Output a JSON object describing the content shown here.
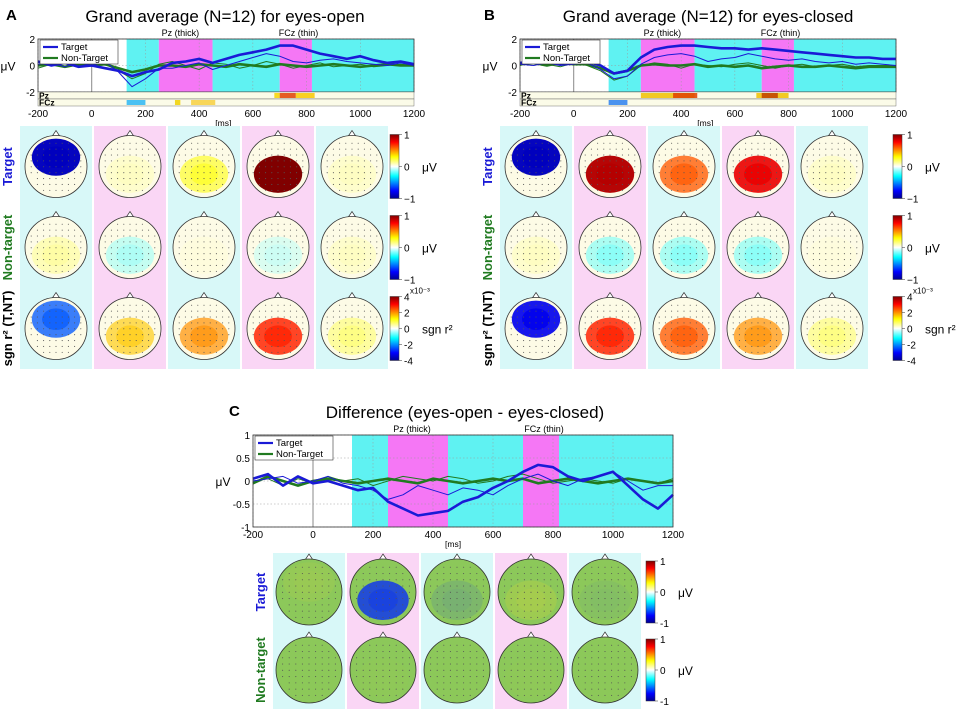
{
  "chart_data": [
    {
      "type": "line",
      "panel_letter": "A",
      "title": "Grand average (N=12) for eyes-open",
      "xlabel": "[ms]",
      "ylabel": "μV",
      "xlim": [
        -200,
        1200
      ],
      "ylim": [
        -2,
        2
      ],
      "xticks": [
        -200,
        0,
        200,
        400,
        600,
        800,
        1000,
        1200
      ],
      "yticks": [
        -2,
        0,
        2
      ],
      "legend": [
        "Target",
        "Non-Target"
      ],
      "channel_labels": [
        "Pz (thick)",
        "FCz (thin)"
      ],
      "r2_strip_labels": [
        "Pz",
        "FCz"
      ],
      "intervals_ms": [
        [
          130,
          250
        ],
        [
          250,
          450
        ],
        [
          450,
          700
        ],
        [
          700,
          820
        ],
        [
          820,
          1200
        ]
      ],
      "interval_colors": [
        "cyan",
        "magenta",
        "cyan",
        "magenta",
        "cyan"
      ],
      "series": [
        {
          "name": "Target Pz (thick)",
          "x": [
            -200,
            -150,
            -100,
            -50,
            0,
            50,
            100,
            150,
            200,
            250,
            300,
            350,
            400,
            450,
            500,
            550,
            600,
            650,
            700,
            750,
            800,
            850,
            900,
            950,
            1000,
            1050,
            1100,
            1150,
            1200
          ],
          "values": [
            0.3,
            0.0,
            0.2,
            -0.1,
            0.0,
            -0.2,
            -0.4,
            -0.8,
            -0.5,
            -0.3,
            0.2,
            0.3,
            0.5,
            0.2,
            0.5,
            0.8,
            1.0,
            1.2,
            1.5,
            1.5,
            1.2,
            0.9,
            0.7,
            0.5,
            0.7,
            0.4,
            0.2,
            0.3,
            0.1
          ]
        },
        {
          "name": "Target FCz (thin)",
          "x": [
            -200,
            -150,
            -100,
            -50,
            0,
            50,
            100,
            150,
            200,
            250,
            300,
            350,
            400,
            450,
            500,
            550,
            600,
            650,
            700,
            750,
            800,
            850,
            900,
            950,
            1000,
            1050,
            1100,
            1150,
            1200
          ],
          "values": [
            0.1,
            0.2,
            -0.1,
            0.2,
            0.0,
            0.3,
            -0.5,
            -1.6,
            -1.0,
            -0.2,
            -0.2,
            0.0,
            0.2,
            -0.3,
            0.0,
            0.3,
            0.6,
            0.9,
            0.7,
            0.3,
            0.2,
            0.4,
            0.5,
            0.3,
            0.2,
            0.1,
            0.0,
            0.2,
            0.0
          ]
        },
        {
          "name": "Non-Target Pz (thick)",
          "x": [
            -200,
            -150,
            -100,
            -50,
            0,
            50,
            100,
            150,
            200,
            250,
            300,
            350,
            400,
            450,
            500,
            550,
            600,
            650,
            700,
            750,
            800,
            850,
            900,
            950,
            1000,
            1050,
            1100,
            1150,
            1200
          ],
          "values": [
            0.0,
            0.1,
            -0.1,
            0.1,
            0.0,
            0.1,
            -0.2,
            -0.5,
            -0.3,
            0.0,
            0.0,
            -0.1,
            0.1,
            0.0,
            -0.1,
            0.1,
            0.0,
            -0.1,
            0.1,
            0.0,
            -0.1,
            0.0,
            0.1,
            0.0,
            -0.1,
            0.0,
            0.1,
            0.0,
            0.0
          ]
        },
        {
          "name": "Non-Target FCz (thin)",
          "x": [
            -200,
            -150,
            -100,
            -50,
            0,
            50,
            100,
            150,
            200,
            250,
            300,
            350,
            400,
            450,
            500,
            550,
            600,
            650,
            700,
            750,
            800,
            850,
            900,
            950,
            1000,
            1050,
            1100,
            1150,
            1200
          ],
          "values": [
            -0.2,
            0.1,
            0.2,
            -0.1,
            0.0,
            0.1,
            -0.4,
            -1.0,
            -0.6,
            0.1,
            0.3,
            0.0,
            -0.3,
            0.2,
            0.1,
            -0.2,
            0.0,
            0.3,
            0.1,
            -0.2,
            0.0,
            0.2,
            -0.1,
            0.0,
            0.1,
            -0.1,
            0.0,
            0.1,
            0.0
          ]
        }
      ],
      "topo_rows": [
        "Target",
        "Non-target",
        "sgn r² (T,NT)"
      ],
      "colorbars": [
        {
          "ticks": [
            "1",
            "0",
            "−1"
          ],
          "unit": "μV"
        },
        {
          "ticks": [
            "1",
            "0",
            "−1"
          ],
          "unit": "μV"
        },
        {
          "ticks": [
            "4",
            "2",
            "0",
            "-2",
            "-4"
          ],
          "unit": "sgn r²",
          "exponent": "x10⁻³"
        }
      ],
      "topo_values": [
        [
          -0.9,
          0.1,
          0.3,
          1.0,
          0.1
        ],
        [
          0.15,
          -0.15,
          0.05,
          -0.1,
          0.1
        ],
        [
          -0.6,
          0.4,
          0.5,
          0.7,
          0.2
        ]
      ]
    },
    {
      "type": "line",
      "panel_letter": "B",
      "title": "Grand average (N=12) for eyes-closed",
      "xlabel": "[ms]",
      "ylabel": "μV",
      "xlim": [
        -200,
        1200
      ],
      "ylim": [
        -2,
        2
      ],
      "xticks": [
        -200,
        0,
        200,
        400,
        600,
        800,
        1000,
        1200
      ],
      "yticks": [
        -2,
        0,
        2
      ],
      "legend": [
        "Target",
        "Non-Target"
      ],
      "channel_labels": [
        "Pz (thick)",
        "FCz (thin)"
      ],
      "r2_strip_labels": [
        "Pz",
        "FCz"
      ],
      "intervals_ms": [
        [
          130,
          250
        ],
        [
          250,
          450
        ],
        [
          450,
          700
        ],
        [
          700,
          820
        ],
        [
          820,
          1200
        ]
      ],
      "interval_colors": [
        "cyan",
        "magenta",
        "cyan",
        "magenta",
        "cyan"
      ],
      "series": [
        {
          "name": "Target Pz (thick)",
          "x": [
            -200,
            -150,
            -100,
            -50,
            0,
            50,
            100,
            150,
            200,
            250,
            300,
            350,
            400,
            450,
            500,
            550,
            600,
            650,
            700,
            750,
            800,
            850,
            900,
            950,
            1000,
            1050,
            1100,
            1150,
            1200
          ],
          "values": [
            0.2,
            0.3,
            0.4,
            0.1,
            0.2,
            0.3,
            0.0,
            -0.6,
            -0.4,
            0.6,
            1.2,
            1.4,
            1.5,
            1.5,
            1.4,
            1.3,
            1.3,
            1.2,
            1.3,
            1.2,
            1.1,
            1.0,
            0.9,
            0.8,
            0.7,
            0.6,
            0.6,
            0.5,
            0.5
          ]
        },
        {
          "name": "Target FCz (thin)",
          "x": [
            -200,
            -150,
            -100,
            -50,
            0,
            50,
            100,
            150,
            200,
            250,
            300,
            350,
            400,
            450,
            500,
            550,
            600,
            650,
            700,
            750,
            800,
            850,
            900,
            950,
            1000,
            1050,
            1100,
            1150,
            1200
          ],
          "values": [
            0.1,
            0.0,
            0.2,
            0.0,
            0.1,
            0.2,
            -0.3,
            -1.0,
            -0.8,
            0.1,
            0.6,
            0.8,
            0.9,
            0.7,
            0.3,
            0.5,
            0.6,
            0.9,
            0.7,
            0.5,
            0.4,
            0.5,
            0.3,
            0.2,
            0.3,
            0.1,
            0.2,
            0.1,
            0.0
          ]
        },
        {
          "name": "Non-Target Pz (thick)",
          "x": [
            -200,
            -150,
            -100,
            -50,
            0,
            50,
            100,
            150,
            200,
            250,
            300,
            350,
            400,
            450,
            500,
            550,
            600,
            650,
            700,
            750,
            800,
            850,
            900,
            950,
            1000,
            1050,
            1100,
            1150,
            1200
          ],
          "values": [
            0.1,
            0.2,
            0.0,
            0.2,
            0.1,
            0.1,
            -0.2,
            -0.6,
            -0.4,
            0.0,
            0.1,
            0.0,
            0.0,
            0.1,
            -0.1,
            0.0,
            -0.1,
            0.0,
            -0.2,
            -0.1,
            0.0,
            -0.1,
            -0.1,
            0.0,
            -0.1,
            -0.2,
            -0.1,
            -0.1,
            -0.1
          ]
        },
        {
          "name": "Non-Target FCz (thin)",
          "x": [
            -200,
            -150,
            -100,
            -50,
            0,
            50,
            100,
            150,
            200,
            250,
            300,
            350,
            400,
            450,
            500,
            550,
            600,
            650,
            700,
            750,
            800,
            850,
            900,
            950,
            1000,
            1050,
            1100,
            1150,
            1200
          ],
          "values": [
            0.0,
            0.3,
            0.1,
            -0.1,
            0.2,
            0.0,
            -0.4,
            -1.1,
            -0.8,
            0.0,
            0.2,
            0.1,
            -0.2,
            0.1,
            0.0,
            -0.1,
            0.1,
            0.2,
            0.0,
            -0.2,
            0.0,
            0.1,
            -0.1,
            0.0,
            0.1,
            -0.1,
            0.0,
            0.0,
            0.0
          ]
        }
      ],
      "topo_rows": [
        "Target",
        "Non-target",
        "sgn r² (T,NT)"
      ],
      "colorbars": [
        {
          "ticks": [
            "1",
            "0",
            "−1"
          ],
          "unit": "μV"
        },
        {
          "ticks": [
            "1",
            "0",
            "−1"
          ],
          "unit": "μV"
        },
        {
          "ticks": [
            "4",
            "2",
            "0",
            "-2",
            "-4"
          ],
          "unit": "sgn r²",
          "exponent": "x10⁻³"
        }
      ],
      "topo_values": [
        [
          -0.9,
          0.9,
          0.6,
          0.8,
          0.1
        ],
        [
          0.1,
          -0.2,
          -0.2,
          -0.2,
          0.05
        ],
        [
          -0.8,
          0.7,
          0.6,
          0.5,
          0.2
        ]
      ]
    },
    {
      "type": "line",
      "panel_letter": "C",
      "title": "Difference (eyes-open - eyes-closed)",
      "xlabel": "[ms]",
      "ylabel": "μV",
      "xlim": [
        -200,
        1200
      ],
      "ylim": [
        -1,
        1
      ],
      "xticks": [
        -200,
        0,
        200,
        400,
        600,
        800,
        1000,
        1200
      ],
      "yticks": [
        -1,
        -0.5,
        0,
        0.5,
        1
      ],
      "legend": [
        "Target",
        "Non-Target"
      ],
      "channel_labels": [
        "Pz (thick)",
        "FCz (thin)"
      ],
      "intervals_ms": [
        [
          130,
          250
        ],
        [
          250,
          450
        ],
        [
          450,
          700
        ],
        [
          700,
          820
        ],
        [
          820,
          1200
        ]
      ],
      "interval_colors": [
        "cyan",
        "magenta",
        "cyan",
        "magenta",
        "cyan"
      ],
      "series": [
        {
          "name": "Target Pz (thick)",
          "x": [
            -200,
            -150,
            -100,
            -50,
            0,
            50,
            100,
            150,
            200,
            250,
            300,
            350,
            400,
            450,
            500,
            550,
            600,
            650,
            700,
            750,
            800,
            850,
            900,
            950,
            1000,
            1050,
            1100,
            1150,
            1200
          ],
          "values": [
            0.05,
            0.15,
            -0.1,
            0.1,
            -0.05,
            0.0,
            -0.1,
            -0.2,
            -0.15,
            -0.45,
            -0.6,
            -0.75,
            -0.7,
            -0.65,
            -0.45,
            -0.35,
            -0.15,
            0.0,
            0.2,
            0.35,
            0.3,
            0.1,
            0.0,
            0.1,
            0.2,
            -0.1,
            -0.4,
            -0.6,
            -0.3
          ]
        },
        {
          "name": "Target FCz (thin)",
          "x": [
            -200,
            -150,
            -100,
            -50,
            0,
            50,
            100,
            150,
            200,
            250,
            300,
            350,
            400,
            450,
            500,
            550,
            600,
            650,
            700,
            750,
            800,
            850,
            900,
            950,
            1000,
            1050,
            1100,
            1150,
            1200
          ],
          "values": [
            0.0,
            0.05,
            0.1,
            -0.05,
            0.0,
            0.1,
            -0.05,
            -0.1,
            -0.2,
            -0.4,
            -0.3,
            -0.1,
            -0.2,
            -0.3,
            -0.15,
            -0.2,
            -0.3,
            -0.1,
            0.05,
            0.15,
            0.0,
            -0.1,
            0.05,
            0.1,
            0.2,
            0.0,
            -0.2,
            -0.1,
            -0.1
          ]
        },
        {
          "name": "Non-Target Pz (thick)",
          "x": [
            -200,
            -150,
            -100,
            -50,
            0,
            50,
            100,
            150,
            200,
            250,
            300,
            350,
            400,
            450,
            500,
            550,
            600,
            650,
            700,
            750,
            800,
            850,
            900,
            950,
            1000,
            1050,
            1100,
            1150,
            1200
          ],
          "values": [
            -0.05,
            0.1,
            0.0,
            -0.1,
            0.0,
            0.05,
            0.0,
            -0.05,
            0.0,
            0.05,
            0.0,
            -0.05,
            0.05,
            0.0,
            -0.05,
            0.0,
            0.05,
            0.0,
            0.05,
            -0.05,
            0.0,
            0.05,
            0.0,
            -0.05,
            0.0,
            0.05,
            0.0,
            -0.05,
            0.0
          ]
        },
        {
          "name": "Non-Target FCz (thin)",
          "x": [
            -200,
            -150,
            -100,
            -50,
            0,
            50,
            100,
            150,
            200,
            250,
            300,
            350,
            400,
            450,
            500,
            550,
            600,
            650,
            700,
            750,
            800,
            850,
            900,
            950,
            1000,
            1050,
            1100,
            1150,
            1200
          ],
          "values": [
            0.0,
            0.05,
            -0.1,
            0.05,
            -0.05,
            0.1,
            0.0,
            0.05,
            -0.1,
            0.0,
            0.1,
            0.05,
            0.0,
            0.1,
            0.05,
            -0.05,
            0.0,
            0.1,
            0.15,
            0.05,
            -0.05,
            0.0,
            0.05,
            0.0,
            -0.05,
            0.05,
            0.0,
            -0.05,
            0.05
          ]
        }
      ],
      "topo_rows": [
        "Target",
        "Non-target"
      ],
      "colorbars": [
        {
          "ticks": [
            "1",
            "0",
            "-1"
          ],
          "unit": "μV"
        },
        {
          "ticks": [
            "1",
            "0",
            "-1"
          ],
          "unit": "μV"
        }
      ],
      "topo_values": [
        [
          0.15,
          -0.8,
          -0.2,
          0.25,
          -0.1
        ],
        [
          0.0,
          0.05,
          0.0,
          0.05,
          0.0
        ]
      ]
    }
  ]
}
